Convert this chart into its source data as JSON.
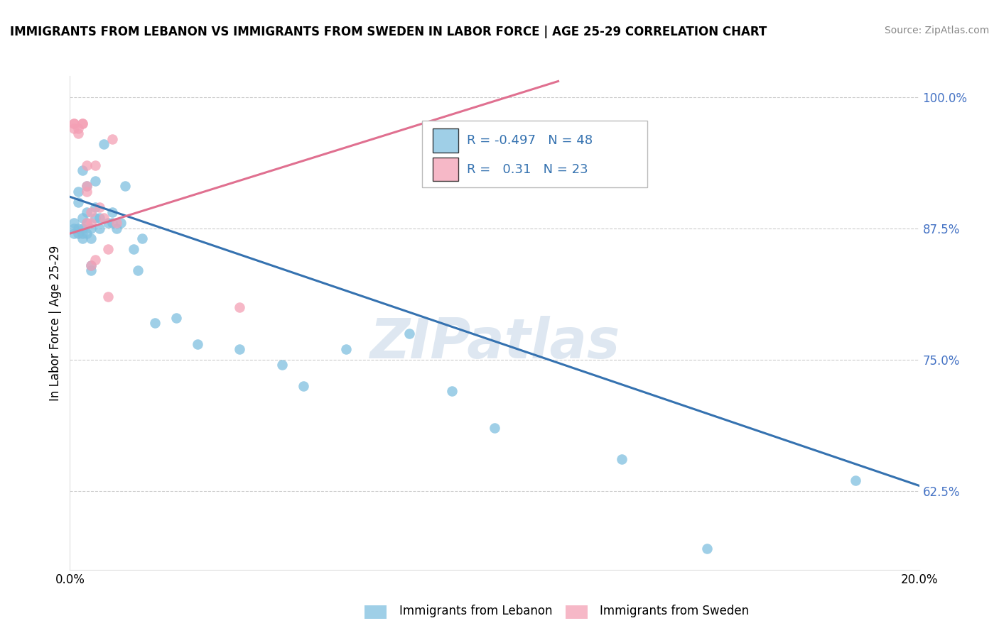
{
  "title": "IMMIGRANTS FROM LEBANON VS IMMIGRANTS FROM SWEDEN IN LABOR FORCE | AGE 25-29 CORRELATION CHART",
  "source": "Source: ZipAtlas.com",
  "ylabel": "In Labor Force | Age 25-29",
  "x_min": 0.0,
  "x_max": 0.2,
  "y_min": 0.55,
  "y_max": 1.02,
  "y_ticks": [
    0.625,
    0.75,
    0.875,
    1.0
  ],
  "y_tick_labels": [
    "62.5%",
    "75.0%",
    "87.5%",
    "100.0%"
  ],
  "x_ticks": [
    0.0,
    0.2
  ],
  "x_tick_labels": [
    "0.0%",
    "20.0%"
  ],
  "lebanon_color": "#7fbfdf",
  "sweden_color": "#f4a0b5",
  "lebanon_R": -0.497,
  "lebanon_N": 48,
  "sweden_R": 0.31,
  "sweden_N": 23,
  "lebanon_label": "Immigrants from Lebanon",
  "sweden_label": "Immigrants from Sweden",
  "watermark": "ZIPatlas",
  "lebanon_trendline_x": [
    0.0,
    0.2
  ],
  "lebanon_trendline_y": [
    0.905,
    0.63
  ],
  "sweden_trendline_x": [
    0.0,
    0.115
  ],
  "sweden_trendline_y": [
    0.87,
    1.015
  ],
  "lebanon_x": [
    0.001,
    0.001,
    0.001,
    0.002,
    0.002,
    0.002,
    0.002,
    0.003,
    0.003,
    0.003,
    0.003,
    0.003,
    0.004,
    0.004,
    0.004,
    0.004,
    0.005,
    0.005,
    0.005,
    0.005,
    0.006,
    0.006,
    0.006,
    0.007,
    0.007,
    0.008,
    0.009,
    0.01,
    0.01,
    0.011,
    0.012,
    0.013,
    0.015,
    0.016,
    0.017,
    0.02,
    0.025,
    0.03,
    0.04,
    0.05,
    0.055,
    0.065,
    0.08,
    0.09,
    0.1,
    0.13,
    0.15,
    0.185
  ],
  "lebanon_y": [
    0.875,
    0.88,
    0.87,
    0.9,
    0.91,
    0.875,
    0.87,
    0.93,
    0.885,
    0.875,
    0.87,
    0.865,
    0.915,
    0.89,
    0.88,
    0.87,
    0.875,
    0.865,
    0.84,
    0.835,
    0.92,
    0.895,
    0.885,
    0.885,
    0.875,
    0.955,
    0.88,
    0.89,
    0.88,
    0.875,
    0.88,
    0.915,
    0.855,
    0.835,
    0.865,
    0.785,
    0.79,
    0.765,
    0.76,
    0.745,
    0.725,
    0.76,
    0.775,
    0.72,
    0.685,
    0.655,
    0.57,
    0.635
  ],
  "sweden_x": [
    0.001,
    0.001,
    0.001,
    0.002,
    0.002,
    0.003,
    0.003,
    0.004,
    0.004,
    0.004,
    0.004,
    0.005,
    0.005,
    0.005,
    0.006,
    0.006,
    0.007,
    0.008,
    0.009,
    0.009,
    0.01,
    0.011,
    0.04
  ],
  "sweden_y": [
    0.97,
    0.975,
    0.975,
    0.97,
    0.965,
    0.975,
    0.975,
    0.915,
    0.91,
    0.88,
    0.935,
    0.89,
    0.88,
    0.84,
    0.845,
    0.935,
    0.895,
    0.885,
    0.855,
    0.81,
    0.96,
    0.88,
    0.8
  ]
}
